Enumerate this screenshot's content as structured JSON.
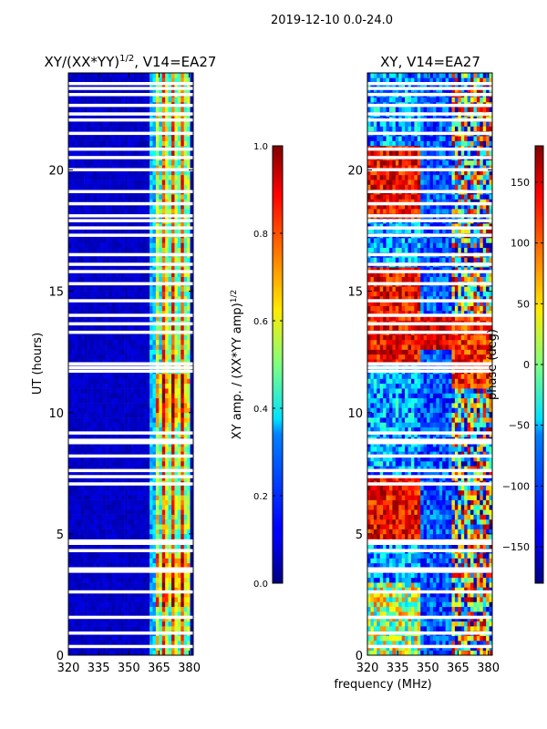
{
  "chart_data": [
    {
      "type": "heatmap",
      "suptitle": "2019-12-10 0.0-24.0",
      "title": "XY/(XX*YY)",
      "title_exponent": "1/2",
      "title_suffix": ", V14=EA27",
      "xlabel": "",
      "ylabel": "UT (hours)",
      "xlim": [
        320,
        382
      ],
      "ylim": [
        0,
        24
      ],
      "xticks": [
        "320",
        "335",
        "350",
        "365",
        "380"
      ],
      "yticks": [
        "0",
        "5",
        "10",
        "15",
        "20"
      ],
      "xtick_values": [
        320,
        335,
        350,
        365,
        380
      ],
      "ytick_values": [
        0,
        5,
        10,
        15,
        20
      ],
      "colormap": "jet",
      "colorbar": {
        "label": "XY amp. / (XX*YY amp)",
        "label_exponent": "1/2",
        "range": [
          0.0,
          1.0
        ],
        "ticks": [
          "0.0",
          "0.2",
          "0.4",
          "0.6",
          "0.8",
          "1.0"
        ],
        "tick_values": [
          0.0,
          0.2,
          0.4,
          0.6,
          0.8,
          1.0
        ]
      },
      "flagged_hours": [
        0.35,
        0.9,
        1.55,
        2.6,
        3.45,
        3.55,
        4.3,
        4.6,
        4.7,
        7.05,
        7.35,
        7.6,
        8.2,
        8.75,
        8.85,
        9.15,
        11.7,
        11.85,
        12.0,
        13.3,
        13.65,
        14.0,
        14.6,
        15.3,
        15.8,
        16.1,
        16.5,
        17.3,
        17.6,
        17.9,
        18.1,
        18.6,
        19.1,
        20.0,
        20.5,
        20.85,
        21.5,
        22.05,
        22.3,
        22.65,
        23.1,
        23.35,
        23.55
      ],
      "data_description": "Low normalized amplitude (~0.05) over 320-362 MHz; bright striped columns ~0.5-0.9 between 362-381 MHz"
    },
    {
      "type": "heatmap",
      "title": "XY, V14=EA27",
      "xlabel": "frequency (MHz)",
      "ylabel": "",
      "xlim": [
        320,
        382
      ],
      "ylim": [
        0,
        24
      ],
      "xticks": [
        "320",
        "335",
        "350",
        "365",
        "380"
      ],
      "yticks": [
        "0",
        "5",
        "10",
        "15",
        "20"
      ],
      "xtick_values": [
        320,
        335,
        350,
        365,
        380
      ],
      "ytick_values": [
        0,
        5,
        10,
        15,
        20
      ],
      "colormap": "jet",
      "colorbar": {
        "label": "phase (deg)",
        "range": [
          -180,
          180
        ],
        "ticks": [
          "-150",
          "-100",
          "-50",
          "0",
          "50",
          "100",
          "150"
        ],
        "tick_values": [
          -150,
          -100,
          -50,
          0,
          50,
          100,
          150
        ]
      },
      "flagged_hours": [
        0.35,
        0.9,
        1.55,
        2.6,
        3.45,
        3.55,
        4.3,
        4.6,
        4.7,
        7.05,
        7.35,
        7.6,
        8.2,
        8.75,
        8.85,
        9.15,
        11.7,
        11.85,
        12.0,
        13.3,
        13.65,
        14.0,
        14.6,
        15.3,
        15.8,
        16.1,
        16.5,
        17.3,
        17.6,
        17.9,
        18.1,
        18.6,
        19.1,
        20.0,
        20.5,
        20.85,
        21.5,
        22.05,
        22.3,
        22.65,
        23.1,
        23.35,
        23.55
      ],
      "data_description": "Phase varies widely; warm (+150..180 deg) patches at 322-345 MHz, cool (-180..-120 deg) mid band, mixed values 362-381 MHz"
    }
  ]
}
